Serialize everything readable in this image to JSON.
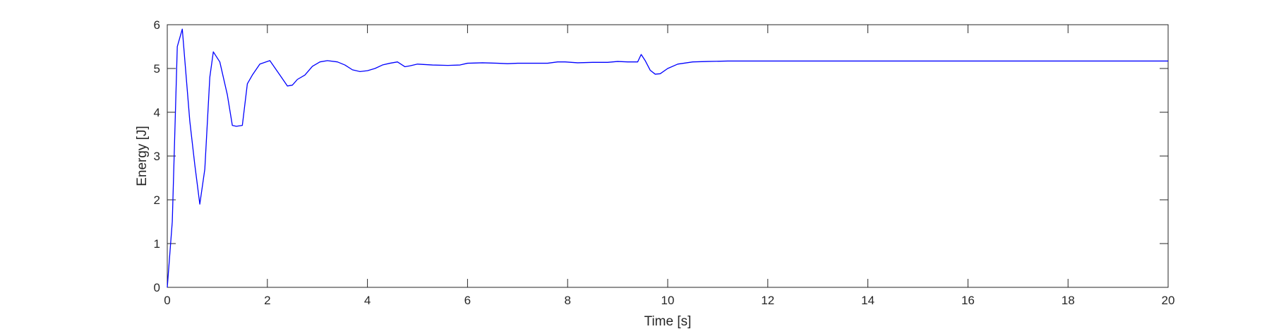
{
  "chart_data": {
    "type": "line",
    "title": "",
    "xlabel": "Time [s]",
    "ylabel": "Energy [J]",
    "xlim": [
      0,
      20
    ],
    "ylim": [
      0,
      6
    ],
    "xticks": [
      0,
      2,
      4,
      6,
      8,
      10,
      12,
      14,
      16,
      18,
      20
    ],
    "yticks": [
      0,
      1,
      2,
      3,
      4,
      5,
      6
    ],
    "grid": false,
    "legend": "none",
    "series": [
      {
        "color": "#0000ff",
        "x": [
          0,
          0.1,
          0.2,
          0.3,
          0.45,
          0.55,
          0.65,
          0.75,
          0.85,
          0.92,
          1.05,
          1.2,
          1.3,
          1.38,
          1.5,
          1.6,
          1.7,
          1.85,
          2.05,
          2.25,
          2.4,
          2.5,
          2.6,
          2.75,
          2.9,
          3.05,
          3.2,
          3.4,
          3.55,
          3.7,
          3.85,
          4.0,
          4.15,
          4.3,
          4.45,
          4.6,
          4.75,
          4.85,
          5.0,
          5.3,
          5.6,
          5.85,
          6.0,
          6.3,
          6.6,
          6.8,
          7.0,
          7.3,
          7.6,
          7.8,
          7.95,
          8.2,
          8.5,
          8.8,
          9.0,
          9.2,
          9.4,
          9.47,
          9.55,
          9.65,
          9.75,
          9.85,
          10.0,
          10.2,
          10.5,
          10.8,
          11.2,
          11.6,
          12,
          14,
          16,
          18,
          20
        ],
        "y": [
          0,
          1.5,
          5.5,
          5.9,
          3.8,
          2.8,
          1.9,
          2.7,
          4.8,
          5.38,
          5.15,
          4.4,
          3.7,
          3.68,
          3.7,
          4.65,
          4.85,
          5.1,
          5.18,
          4.85,
          4.6,
          4.62,
          4.75,
          4.85,
          5.05,
          5.15,
          5.18,
          5.15,
          5.08,
          4.97,
          4.93,
          4.95,
          5.0,
          5.08,
          5.12,
          5.15,
          5.04,
          5.06,
          5.1,
          5.08,
          5.07,
          5.08,
          5.12,
          5.13,
          5.12,
          5.11,
          5.12,
          5.12,
          5.12,
          5.15,
          5.15,
          5.13,
          5.14,
          5.14,
          5.16,
          5.15,
          5.15,
          5.32,
          5.18,
          4.96,
          4.87,
          4.88,
          5.0,
          5.1,
          5.15,
          5.16,
          5.17,
          5.17,
          5.17,
          5.17,
          5.17,
          5.17,
          5.17
        ]
      }
    ]
  }
}
